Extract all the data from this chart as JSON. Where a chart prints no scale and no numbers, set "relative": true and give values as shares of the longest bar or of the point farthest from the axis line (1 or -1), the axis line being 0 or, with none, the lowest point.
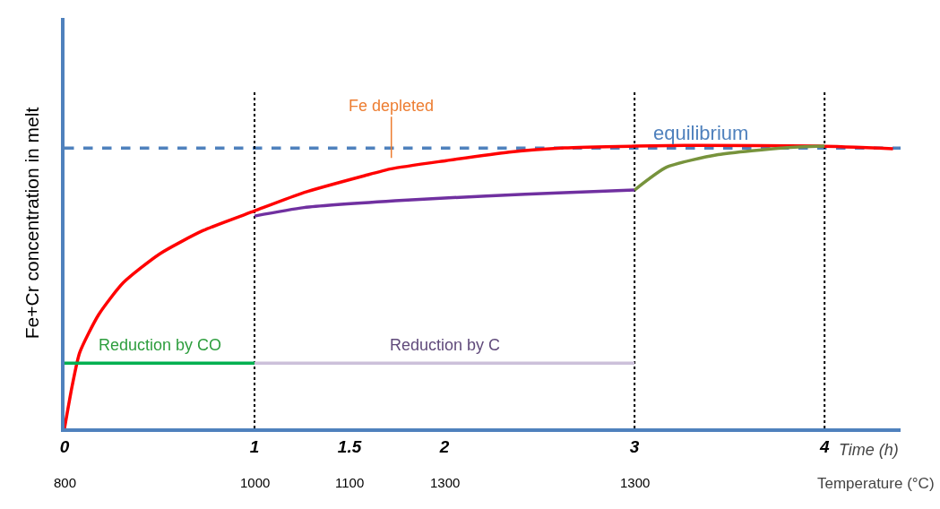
{
  "chart_data": {
    "type": "line",
    "relative": true,
    "xlabel": "Time (h)",
    "x2label": "Temperature (°C)",
    "ylabel": "Fe+Cr concentration in melt",
    "xlim": [
      0,
      4.4
    ],
    "xticks": [
      0,
      1,
      1.5,
      2,
      3,
      4
    ],
    "series": [
      {
        "color": "#ff0000",
        "x": [
          0,
          0.04,
          0.08,
          0.18,
          0.31,
          0.5,
          0.73,
          1,
          1.26,
          1.58,
          1.72,
          2.01,
          2.34,
          2.63,
          3.0,
          3.35,
          3.97,
          4.36
        ],
        "values": [
          0,
          0.149,
          0.268,
          0.402,
          0.515,
          0.616,
          0.699,
          0.768,
          0.833,
          0.893,
          0.917,
          0.946,
          0.976,
          0.991,
          0.997,
          1,
          0.997,
          0.988
        ]
      },
      {
        "color": "#7030a0",
        "x": [
          1,
          1.26,
          1.74,
          2.22,
          2.63,
          3
        ],
        "values": [
          0.75,
          0.78,
          0.804,
          0.821,
          0.833,
          0.842
        ]
      },
      {
        "color": "#77933c",
        "x": [
          3,
          3.17,
          3.44,
          3.79,
          4
        ],
        "values": [
          0.842,
          0.923,
          0.967,
          0.991,
          0.997
        ]
      },
      {
        "color": "#00b050",
        "x": [
          0,
          1
        ],
        "values": [
          0.23,
          0.23
        ]
      },
      {
        "color": "#ccc0da",
        "x": [
          1,
          3
        ],
        "values": [
          0.23,
          0.23
        ]
      }
    ],
    "ref_lines": [
      {
        "axis": "y",
        "value": 0.99,
        "label": "equilibrium",
        "color": "#4f81bd",
        "line_style": "dashed"
      },
      {
        "axis": "x",
        "value": 1,
        "color": "#000000",
        "line_style": "dotted"
      },
      {
        "axis": "x",
        "value": 3,
        "color": "#000000",
        "line_style": "dotted"
      },
      {
        "axis": "x",
        "value": 4,
        "color": "#000000",
        "line_style": "dotted"
      }
    ],
    "annotations": [
      {
        "text": "Fe depleted",
        "x": 1.72,
        "y": 0.917
      },
      "Reduction by CO",
      "Reduction by C",
      "800",
      "1000",
      "1100",
      "1300",
      "1300"
    ],
    "grid": false,
    "marker": "none",
    "line_style": "solid"
  }
}
